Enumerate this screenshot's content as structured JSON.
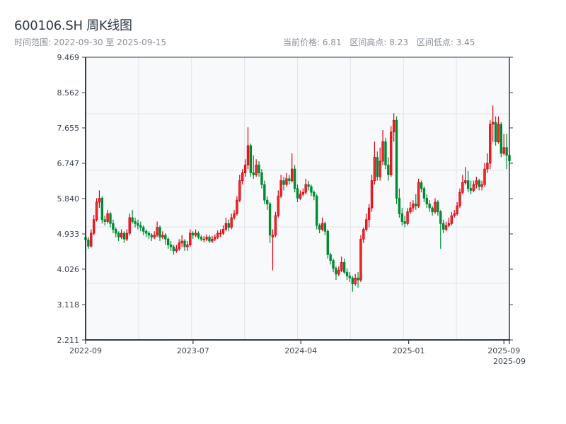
{
  "header": {
    "title": "600106.SH 周K线图",
    "range_label": "时间范围: 2022-09-30 至 2025-09-15",
    "stats": [
      "当前价格: 6.81",
      "区间高点: 8.23",
      "区间低点: 3.45"
    ]
  },
  "chart_data": {
    "type": "candlestick",
    "title": "600106.SH 周K线图",
    "period": "weekly",
    "date_range": [
      "2022-09-30",
      "2025-09-15"
    ],
    "ylim": [
      2.211,
      9.469
    ],
    "y_ticks": [
      "2.211",
      "3.118",
      "4.026",
      "4.933",
      "5.840",
      "6.747",
      "7.655",
      "8.562",
      "9.469"
    ],
    "x_ticks": [
      {
        "label": "2022-09",
        "date": "2022-09-30"
      },
      {
        "label": "2023-07",
        "date": "2023-07-01"
      },
      {
        "label": "2024-04",
        "date": "2024-04-01"
      },
      {
        "label": "2025-01",
        "date": "2025-01-01"
      },
      {
        "label": "2025-09",
        "date": "2025-09-01"
      },
      {
        "label": "2025-09",
        "date": "2025-09-15"
      }
    ],
    "grid": true,
    "colors": {
      "up": "#d9000f",
      "down": "#008a32",
      "background": "#f7f9fb",
      "grid": "#e1e5eb",
      "axis": "#2e3e50"
    },
    "ohlc_fields": [
      "open",
      "high",
      "low",
      "close"
    ],
    "candles": [
      [
        4.85,
        4.92,
        4.42,
        4.78
      ],
      [
        4.78,
        4.85,
        4.55,
        4.62
      ],
      [
        4.62,
        5.05,
        4.58,
        4.95
      ],
      [
        4.95,
        5.42,
        4.9,
        5.3
      ],
      [
        5.3,
        5.85,
        5.25,
        5.75
      ],
      [
        5.75,
        6.05,
        5.6,
        5.85
      ],
      [
        5.85,
        5.9,
        5.2,
        5.3
      ],
      [
        5.3,
        5.4,
        5.15,
        5.25
      ],
      [
        5.25,
        5.55,
        5.2,
        5.45
      ],
      [
        5.45,
        5.5,
        5.1,
        5.2
      ],
      [
        5.2,
        5.3,
        4.95,
        5.05
      ],
      [
        5.05,
        5.1,
        4.85,
        4.95
      ],
      [
        4.95,
        5.0,
        4.75,
        4.85
      ],
      [
        4.85,
        5.05,
        4.8,
        4.95
      ],
      [
        4.95,
        5.0,
        4.7,
        4.8
      ],
      [
        4.8,
        5.05,
        4.75,
        4.95
      ],
      [
        4.95,
        5.45,
        4.9,
        5.35
      ],
      [
        5.35,
        5.55,
        5.2,
        5.25
      ],
      [
        5.25,
        5.35,
        5.1,
        5.2
      ],
      [
        5.2,
        5.3,
        5.05,
        5.15
      ],
      [
        5.15,
        5.25,
        5.0,
        5.1
      ],
      [
        5.1,
        5.15,
        4.9,
        5.0
      ],
      [
        5.0,
        5.05,
        4.85,
        4.95
      ],
      [
        4.95,
        5.0,
        4.8,
        4.9
      ],
      [
        4.9,
        4.95,
        4.75,
        4.85
      ],
      [
        4.85,
        5.0,
        4.8,
        4.9
      ],
      [
        4.9,
        5.25,
        4.85,
        5.1
      ],
      [
        5.1,
        5.15,
        4.75,
        4.85
      ],
      [
        4.85,
        5.0,
        4.8,
        4.9
      ],
      [
        4.9,
        4.95,
        4.65,
        4.8
      ],
      [
        4.8,
        4.85,
        4.55,
        4.65
      ],
      [
        4.65,
        4.75,
        4.5,
        4.6
      ],
      [
        4.6,
        4.65,
        4.4,
        4.5
      ],
      [
        4.5,
        4.65,
        4.45,
        4.55
      ],
      [
        4.55,
        4.8,
        4.5,
        4.7
      ],
      [
        4.7,
        4.9,
        4.6,
        4.75
      ],
      [
        4.75,
        4.8,
        4.5,
        4.6
      ],
      [
        4.6,
        4.75,
        4.5,
        4.65
      ],
      [
        4.65,
        5.05,
        4.6,
        4.95
      ],
      [
        4.95,
        5.0,
        4.8,
        4.9
      ],
      [
        4.9,
        5.05,
        4.85,
        4.95
      ],
      [
        4.95,
        5.0,
        4.8,
        4.85
      ],
      [
        4.85,
        4.9,
        4.75,
        4.8
      ],
      [
        4.8,
        4.88,
        4.72,
        4.8
      ],
      [
        4.8,
        4.92,
        4.75,
        4.85
      ],
      [
        4.85,
        4.9,
        4.7,
        4.75
      ],
      [
        4.75,
        4.88,
        4.7,
        4.8
      ],
      [
        4.8,
        4.92,
        4.75,
        4.85
      ],
      [
        4.85,
        5.02,
        4.8,
        4.95
      ],
      [
        4.95,
        5.05,
        4.85,
        4.95
      ],
      [
        4.95,
        5.15,
        4.9,
        5.05
      ],
      [
        5.05,
        5.35,
        5.0,
        5.2
      ],
      [
        5.2,
        5.3,
        5.0,
        5.1
      ],
      [
        5.1,
        5.45,
        5.05,
        5.35
      ],
      [
        5.35,
        5.55,
        5.3,
        5.45
      ],
      [
        5.45,
        5.9,
        5.4,
        5.8
      ],
      [
        5.8,
        6.45,
        5.75,
        6.3
      ],
      [
        6.3,
        6.6,
        6.2,
        6.5
      ],
      [
        6.5,
        6.85,
        6.4,
        6.7
      ],
      [
        6.7,
        7.67,
        6.6,
        7.2
      ],
      [
        7.2,
        7.25,
        6.4,
        6.5
      ],
      [
        6.5,
        6.95,
        6.35,
        6.45
      ],
      [
        6.45,
        6.85,
        6.4,
        6.7
      ],
      [
        6.7,
        6.8,
        6.4,
        6.5
      ],
      [
        6.5,
        6.6,
        6.1,
        6.2
      ],
      [
        6.2,
        6.3,
        5.7,
        5.8
      ],
      [
        5.8,
        5.9,
        5.55,
        5.7
      ],
      [
        5.7,
        5.75,
        4.7,
        4.9
      ],
      [
        4.85,
        5.05,
        4.0,
        4.9
      ],
      [
        4.9,
        5.5,
        4.85,
        5.4
      ],
      [
        5.4,
        6.05,
        5.35,
        5.9
      ],
      [
        5.9,
        6.45,
        5.85,
        6.3
      ],
      [
        6.3,
        6.4,
        6.05,
        6.2
      ],
      [
        6.2,
        6.5,
        6.15,
        6.35
      ],
      [
        6.35,
        6.45,
        6.2,
        6.3
      ],
      [
        6.3,
        7.0,
        6.25,
        6.6
      ],
      [
        6.6,
        6.7,
        6.0,
        6.1
      ],
      [
        6.1,
        6.2,
        5.75,
        5.85
      ],
      [
        5.85,
        6.05,
        5.8,
        5.95
      ],
      [
        5.95,
        6.1,
        5.9,
        6.0
      ],
      [
        6.0,
        6.35,
        5.95,
        6.2
      ],
      [
        6.2,
        6.3,
        6.05,
        6.15
      ],
      [
        6.15,
        6.2,
        5.9,
        6.0
      ],
      [
        6.0,
        6.05,
        5.8,
        5.9
      ],
      [
        5.9,
        5.95,
        5.05,
        5.15
      ],
      [
        5.15,
        5.2,
        4.95,
        5.05
      ],
      [
        5.05,
        5.35,
        5.0,
        5.2
      ],
      [
        5.2,
        5.25,
        4.9,
        5.0
      ],
      [
        5.0,
        5.05,
        4.3,
        4.4
      ],
      [
        4.4,
        4.45,
        4.15,
        4.25
      ],
      [
        4.25,
        4.3,
        3.95,
        4.05
      ],
      [
        4.05,
        4.1,
        3.75,
        3.9
      ],
      [
        3.9,
        4.1,
        3.85,
        4.0
      ],
      [
        4.0,
        4.35,
        3.95,
        4.2
      ],
      [
        4.2,
        4.3,
        3.9,
        3.95
      ],
      [
        3.95,
        4.05,
        3.75,
        3.85
      ],
      [
        3.85,
        3.95,
        3.7,
        3.8
      ],
      [
        3.8,
        3.85,
        3.45,
        3.65
      ],
      [
        3.65,
        3.9,
        3.6,
        3.8
      ],
      [
        3.8,
        3.95,
        3.55,
        3.75
      ],
      [
        3.75,
        4.9,
        3.7,
        4.8
      ],
      [
        4.8,
        5.1,
        4.7,
        5.05
      ],
      [
        5.05,
        5.45,
        5.0,
        5.3
      ],
      [
        5.3,
        5.7,
        5.1,
        5.6
      ],
      [
        5.6,
        6.45,
        5.5,
        6.3
      ],
      [
        6.3,
        7.3,
        6.2,
        6.9
      ],
      [
        6.9,
        7.05,
        6.3,
        6.4
      ],
      [
        6.4,
        7.15,
        6.3,
        6.8
      ],
      [
        6.8,
        7.6,
        6.7,
        7.3
      ],
      [
        7.3,
        7.4,
        6.6,
        6.7
      ],
      [
        6.7,
        6.9,
        6.3,
        6.45
      ],
      [
        6.45,
        7.7,
        6.4,
        7.55
      ],
      [
        7.55,
        8.03,
        7.3,
        7.85
      ],
      [
        7.85,
        7.95,
        5.7,
        5.85
      ],
      [
        5.85,
        6.1,
        5.35,
        5.45
      ],
      [
        5.45,
        5.6,
        5.15,
        5.25
      ],
      [
        5.25,
        5.4,
        5.1,
        5.2
      ],
      [
        5.2,
        5.6,
        5.15,
        5.5
      ],
      [
        5.5,
        5.75,
        5.45,
        5.6
      ],
      [
        5.6,
        5.8,
        5.5,
        5.7
      ],
      [
        5.7,
        5.95,
        5.55,
        5.65
      ],
      [
        5.65,
        6.35,
        5.6,
        6.25
      ],
      [
        6.25,
        6.3,
        6.0,
        6.1
      ],
      [
        6.1,
        6.15,
        5.75,
        5.85
      ],
      [
        5.85,
        5.95,
        5.6,
        5.7
      ],
      [
        5.7,
        5.8,
        5.5,
        5.6
      ],
      [
        5.6,
        5.65,
        5.4,
        5.5
      ],
      [
        5.5,
        5.85,
        5.45,
        5.75
      ],
      [
        5.75,
        5.8,
        5.4,
        5.5
      ],
      [
        5.5,
        5.55,
        4.55,
        5.2
      ],
      [
        5.2,
        5.3,
        4.95,
        5.05
      ],
      [
        5.05,
        5.25,
        5.0,
        5.15
      ],
      [
        5.15,
        5.35,
        5.1,
        5.2
      ],
      [
        5.2,
        5.5,
        5.15,
        5.4
      ],
      [
        5.4,
        5.55,
        5.35,
        5.45
      ],
      [
        5.45,
        5.75,
        5.4,
        5.65
      ],
      [
        5.65,
        6.1,
        5.6,
        6.0
      ],
      [
        6.0,
        6.45,
        5.95,
        6.25
      ],
      [
        6.25,
        6.65,
        6.2,
        6.3
      ],
      [
        6.3,
        6.55,
        6.0,
        6.1
      ],
      [
        6.1,
        6.3,
        5.95,
        6.05
      ],
      [
        6.05,
        6.3,
        6.0,
        6.2
      ],
      [
        6.2,
        6.4,
        6.1,
        6.3
      ],
      [
        6.3,
        6.35,
        6.05,
        6.15
      ],
      [
        6.15,
        6.3,
        6.05,
        6.2
      ],
      [
        6.2,
        6.75,
        6.15,
        6.6
      ],
      [
        6.6,
        7.0,
        6.5,
        6.75
      ],
      [
        6.75,
        7.85,
        6.6,
        7.75
      ],
      [
        7.75,
        8.23,
        7.3,
        7.8
      ],
      [
        7.8,
        7.95,
        7.2,
        7.3
      ],
      [
        7.3,
        7.95,
        7.25,
        7.75
      ],
      [
        7.75,
        7.8,
        6.9,
        7.0
      ],
      [
        7.0,
        7.5,
        6.95,
        7.15
      ],
      [
        7.15,
        7.5,
        6.6,
        6.95
      ],
      [
        6.95,
        7.0,
        6.7,
        6.81
      ]
    ]
  }
}
